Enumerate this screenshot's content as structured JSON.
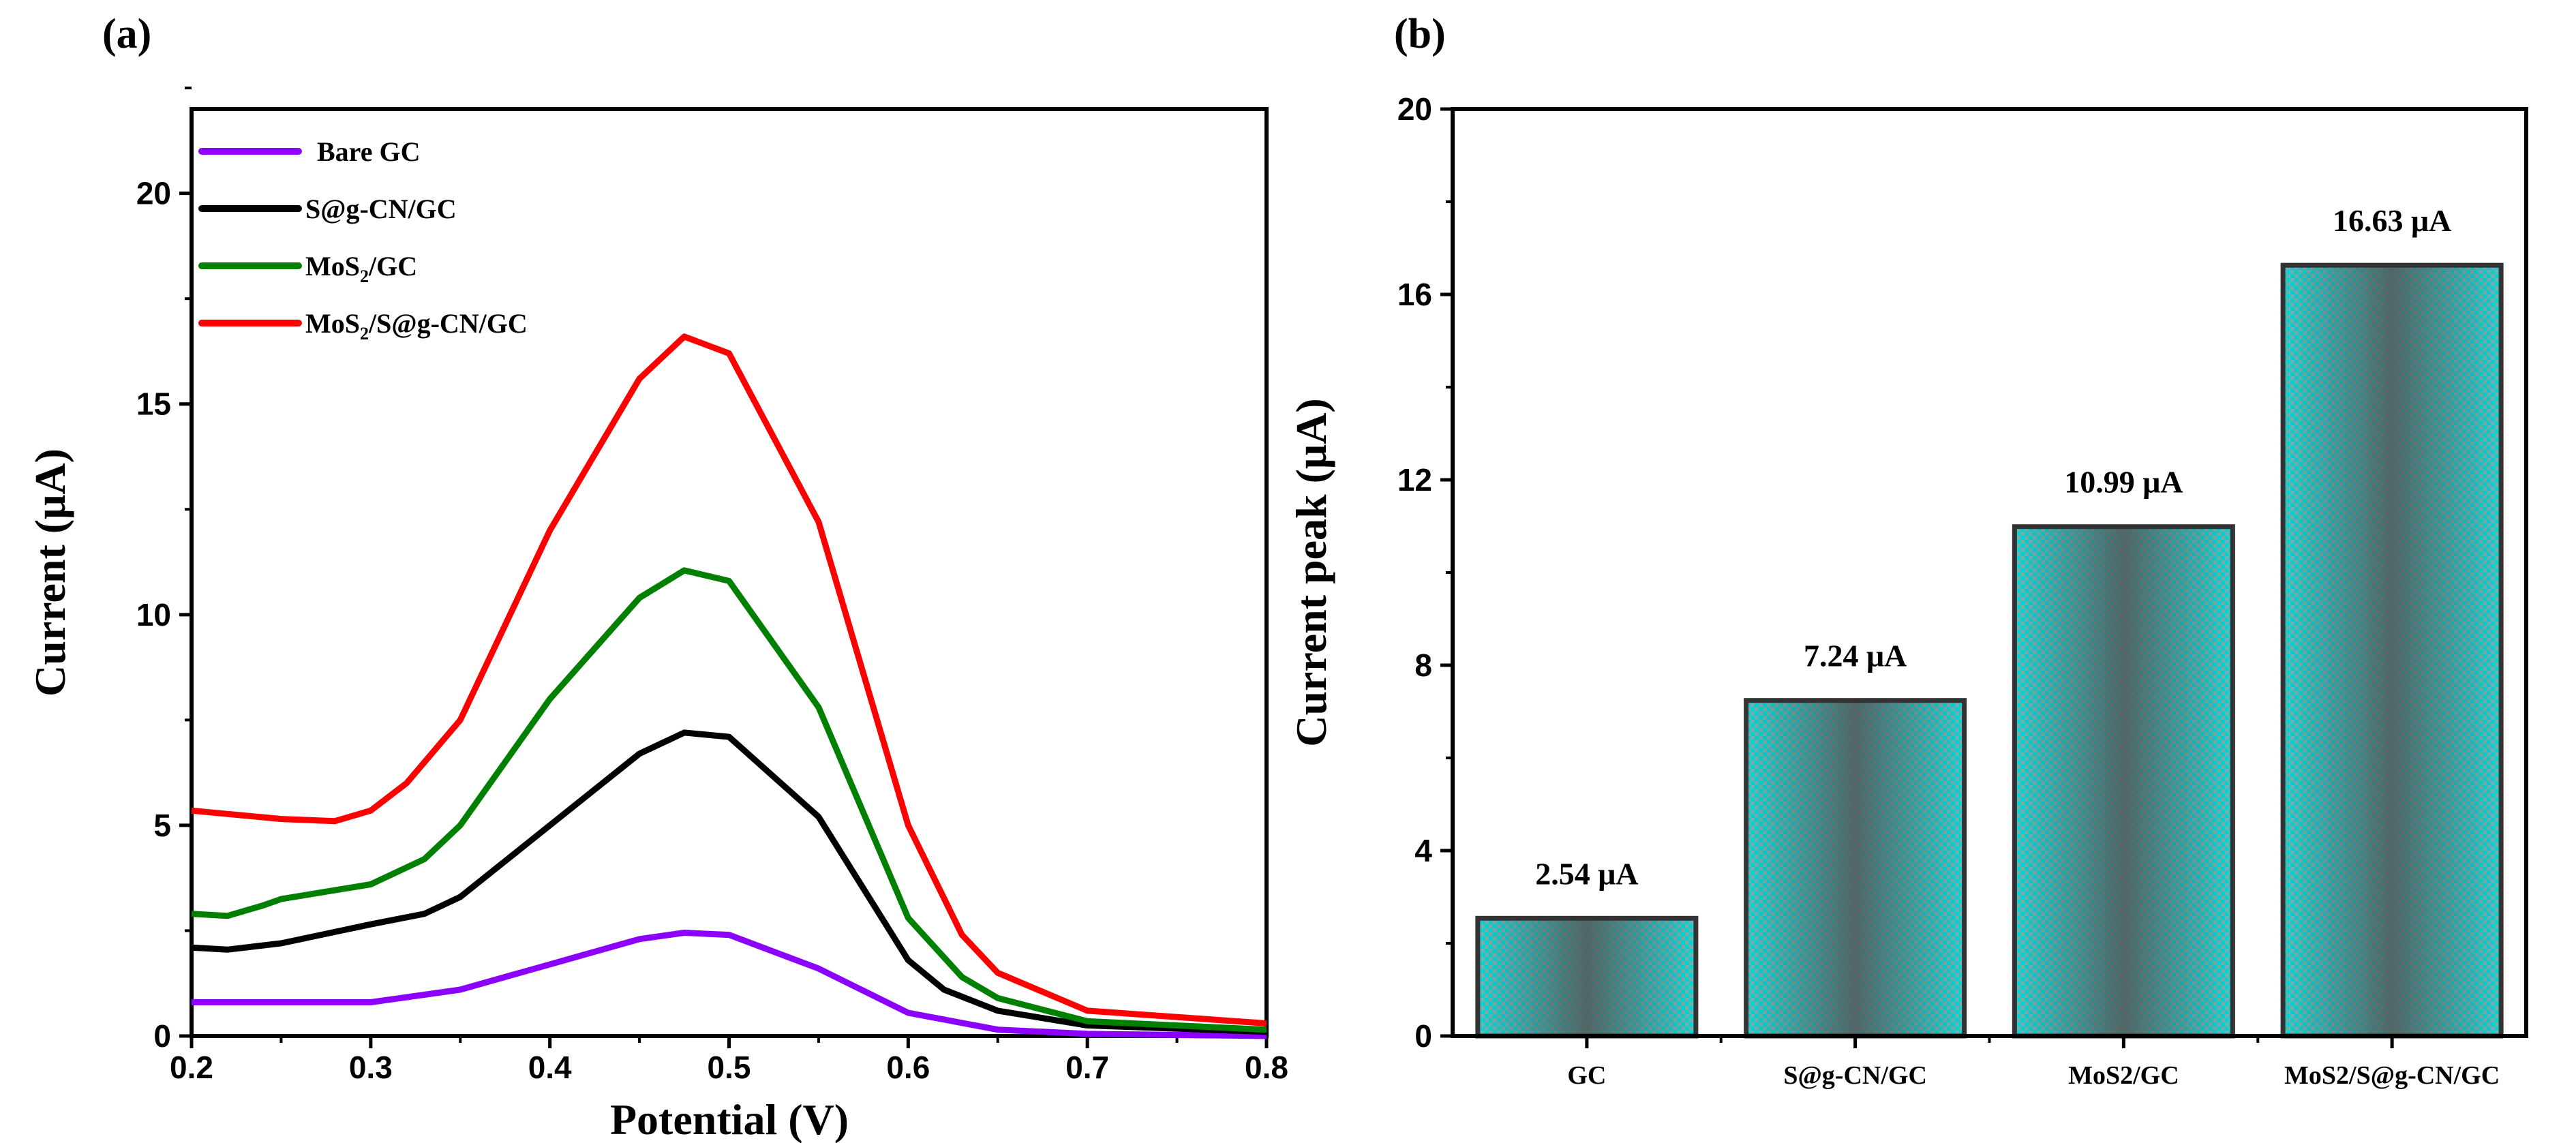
{
  "chart_data": [
    {
      "type": "line",
      "panel_label": "(a)",
      "xlabel": "Potential (V)",
      "ylabel": "Current (μA)",
      "xlim": [
        0.2,
        0.8
      ],
      "ylim": [
        0,
        22
      ],
      "xticks": [
        "0.2",
        "0.3",
        "0.4",
        "0.5",
        "0.6",
        "0.7",
        "0.8"
      ],
      "yticks": [
        "0",
        "5",
        "10",
        "15",
        "20"
      ],
      "legend_position": "top-left",
      "series": [
        {
          "name": "Bare GC",
          "label_parts": {
            "pre": "Bare GC",
            "sub": "",
            "post": ""
          },
          "color": "#8b00ff",
          "x": [
            0.2,
            0.25,
            0.3,
            0.35,
            0.4,
            0.45,
            0.475,
            0.5,
            0.55,
            0.6,
            0.65,
            0.7,
            0.8
          ],
          "y": [
            0.8,
            0.8,
            0.8,
            1.1,
            1.7,
            2.3,
            2.45,
            2.4,
            1.6,
            0.55,
            0.15,
            0.05,
            0.0
          ]
        },
        {
          "name": "S@g-CN/GC",
          "label_parts": {
            "pre": "S@g-CN/GC",
            "sub": "",
            "post": ""
          },
          "color": "#000000",
          "x": [
            0.2,
            0.22,
            0.25,
            0.3,
            0.33,
            0.35,
            0.4,
            0.45,
            0.475,
            0.5,
            0.55,
            0.6,
            0.62,
            0.65,
            0.7,
            0.8
          ],
          "y": [
            2.1,
            2.05,
            2.2,
            2.65,
            2.9,
            3.3,
            5.0,
            6.7,
            7.2,
            7.1,
            5.2,
            1.8,
            1.1,
            0.6,
            0.25,
            0.1
          ]
        },
        {
          "name": "MoS2/GC",
          "label_parts": {
            "pre": "MoS",
            "sub": "2",
            "post": "/GC"
          },
          "color": "#008000",
          "x": [
            0.2,
            0.22,
            0.24,
            0.25,
            0.3,
            0.33,
            0.35,
            0.4,
            0.45,
            0.475,
            0.5,
            0.55,
            0.6,
            0.63,
            0.65,
            0.7,
            0.8
          ],
          "y": [
            2.9,
            2.85,
            3.1,
            3.25,
            3.6,
            4.2,
            5.0,
            8.0,
            10.4,
            11.05,
            10.8,
            7.8,
            2.8,
            1.4,
            0.9,
            0.35,
            0.15
          ]
        },
        {
          "name": "MoS2/S@g-CN/GC",
          "label_parts": {
            "pre": "MoS",
            "sub": "2",
            "post": "/S@g-CN/GC"
          },
          "color": "#ff0000",
          "x": [
            0.2,
            0.25,
            0.28,
            0.3,
            0.32,
            0.35,
            0.4,
            0.45,
            0.475,
            0.5,
            0.55,
            0.6,
            0.63,
            0.65,
            0.7,
            0.8
          ],
          "y": [
            5.35,
            5.15,
            5.1,
            5.35,
            6.0,
            7.5,
            12.0,
            15.6,
            16.6,
            16.2,
            12.2,
            5.0,
            2.4,
            1.5,
            0.6,
            0.3
          ]
        }
      ]
    },
    {
      "type": "bar",
      "panel_label": "(b)",
      "xlabel": "",
      "ylabel": "Current peak  (μA)",
      "ylim": [
        0,
        20
      ],
      "yticks": [
        "0",
        "4",
        "8",
        "12",
        "16",
        "20"
      ],
      "categories": [
        "GC",
        "S@g-CN/GC",
        "MoS2/GC",
        "MoS2/S@g-CN/GC"
      ],
      "values": [
        2.54,
        7.24,
        10.99,
        16.63
      ],
      "data_labels": [
        "2.54 μA",
        "7.24 μA",
        "10.99 μA",
        "16.63 μA"
      ],
      "bar_color": "#00e5e5"
    }
  ]
}
